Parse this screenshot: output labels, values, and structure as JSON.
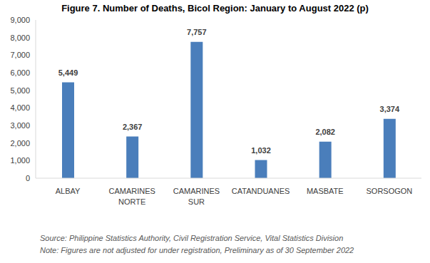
{
  "chart_data": {
    "type": "bar",
    "title": "Figure 7. Number of Deaths, Bicol Region: January to August 2022 (p)",
    "categories": [
      "ALBAY",
      "CAMARINES NORTE",
      "CAMARINES SUR",
      "CATANDUANES",
      "MASBATE",
      "SORSOGON"
    ],
    "values": [
      5449,
      2367,
      7757,
      1032,
      2082,
      3374
    ],
    "value_labels": [
      "5,449",
      "2,367",
      "7,757",
      "1,032",
      "2,082",
      "3,374"
    ],
    "color": "#4a7ebb",
    "ylim": [
      0,
      9000
    ],
    "yticks": [
      0,
      {
        "value": 1000,
        "label": "1,000"
      },
      {
        "value": 2000,
        "label": "2,000"
      },
      {
        "value": 3000,
        "label": "3,000"
      },
      {
        "value": 4000,
        "label": "4,000"
      },
      {
        "value": 5000,
        "label": "5,000"
      },
      {
        "value": 6000,
        "label": "6,000"
      },
      {
        "value": 7000,
        "label": "7,000"
      },
      {
        "value": 8000,
        "label": "8,000"
      },
      {
        "value": 9000,
        "label": "9,000"
      }
    ],
    "grid": false,
    "data_labels": true,
    "source": "Source: Philippine Statistics Authority, Civil Registration Service, Vital Statistics Division",
    "note": "Note: Figures are not adjusted for under registration, Preliminary as of 30 September 2022"
  }
}
